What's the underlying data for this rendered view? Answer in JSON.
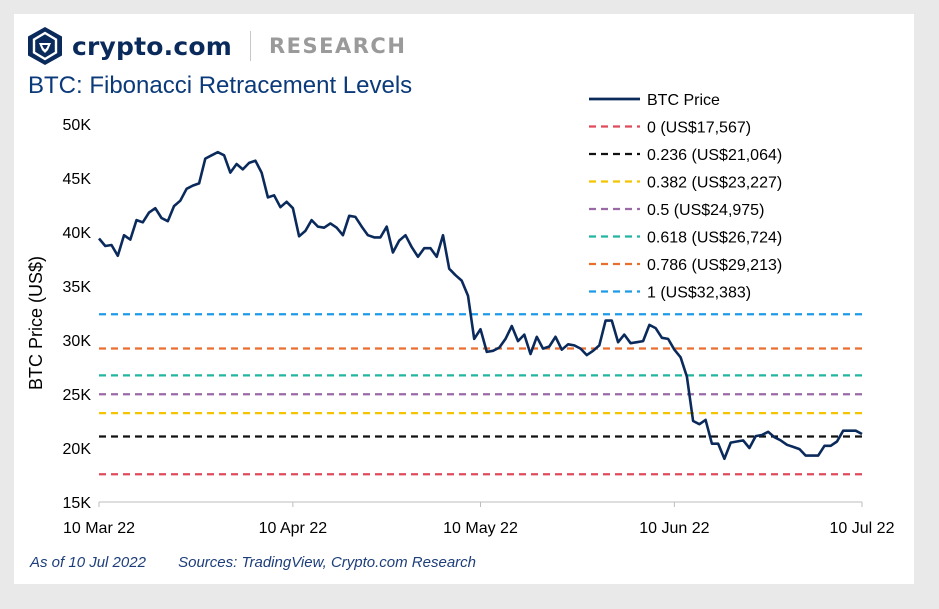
{
  "brand": {
    "name": "crypto.com",
    "section": "RESEARCH",
    "logo_icon": "crypto-com-lion-shield",
    "color": "#0b2a5c"
  },
  "footer": {
    "as_of": "As of 10 Jul 2022",
    "sources": "Sources: TradingView, Crypto.com Research"
  },
  "chart_data": {
    "type": "line",
    "title": "BTC: Fibonacci Retracement Levels",
    "xlabel": "",
    "ylabel": "BTC Price (US$)",
    "ylim": [
      15000,
      50000
    ],
    "yticks": [
      15000,
      20000,
      25000,
      30000,
      35000,
      40000,
      45000,
      50000
    ],
    "ytick_labels": [
      "15K",
      "20K",
      "25K",
      "30K",
      "35K",
      "40K",
      "45K",
      "50K"
    ],
    "xlim": [
      "2022-03-10",
      "2022-07-10"
    ],
    "xticks": [
      "2022-03-10",
      "2022-04-10",
      "2022-05-10",
      "2022-06-10",
      "2022-07-10"
    ],
    "xtick_labels": [
      "10 Mar 22",
      "10 Apr 22",
      "10 May 22",
      "10 Jun 22",
      "10 Jul 22"
    ],
    "grid": false,
    "legend": "top-right",
    "series": [
      {
        "name": "BTC Price",
        "color": "#0b2a5c",
        "x": [
          "2022-03-10",
          "2022-03-11",
          "2022-03-12",
          "2022-03-13",
          "2022-03-14",
          "2022-03-15",
          "2022-03-16",
          "2022-03-17",
          "2022-03-18",
          "2022-03-19",
          "2022-03-20",
          "2022-03-21",
          "2022-03-22",
          "2022-03-23",
          "2022-03-24",
          "2022-03-25",
          "2022-03-26",
          "2022-03-27",
          "2022-03-28",
          "2022-03-29",
          "2022-03-30",
          "2022-03-31",
          "2022-04-01",
          "2022-04-02",
          "2022-04-03",
          "2022-04-04",
          "2022-04-05",
          "2022-04-06",
          "2022-04-07",
          "2022-04-08",
          "2022-04-09",
          "2022-04-10",
          "2022-04-11",
          "2022-04-12",
          "2022-04-13",
          "2022-04-14",
          "2022-04-15",
          "2022-04-16",
          "2022-04-17",
          "2022-04-18",
          "2022-04-19",
          "2022-04-20",
          "2022-04-21",
          "2022-04-22",
          "2022-04-23",
          "2022-04-24",
          "2022-04-25",
          "2022-04-26",
          "2022-04-27",
          "2022-04-28",
          "2022-04-29",
          "2022-04-30",
          "2022-05-01",
          "2022-05-02",
          "2022-05-03",
          "2022-05-04",
          "2022-05-05",
          "2022-05-06",
          "2022-05-07",
          "2022-05-08",
          "2022-05-09",
          "2022-05-10",
          "2022-05-11",
          "2022-05-12",
          "2022-05-13",
          "2022-05-14",
          "2022-05-15",
          "2022-05-16",
          "2022-05-17",
          "2022-05-18",
          "2022-05-19",
          "2022-05-20",
          "2022-05-21",
          "2022-05-22",
          "2022-05-23",
          "2022-05-24",
          "2022-05-25",
          "2022-05-26",
          "2022-05-27",
          "2022-05-28",
          "2022-05-29",
          "2022-05-30",
          "2022-05-31",
          "2022-06-01",
          "2022-06-02",
          "2022-06-03",
          "2022-06-04",
          "2022-06-05",
          "2022-06-06",
          "2022-06-07",
          "2022-06-08",
          "2022-06-09",
          "2022-06-10",
          "2022-06-11",
          "2022-06-12",
          "2022-06-13",
          "2022-06-14",
          "2022-06-15",
          "2022-06-16",
          "2022-06-17",
          "2022-06-18",
          "2022-06-19",
          "2022-06-20",
          "2022-06-21",
          "2022-06-22",
          "2022-06-23",
          "2022-06-24",
          "2022-06-25",
          "2022-06-26",
          "2022-06-27",
          "2022-06-28",
          "2022-06-29",
          "2022-06-30",
          "2022-07-01",
          "2022-07-02",
          "2022-07-03",
          "2022-07-04",
          "2022-07-05",
          "2022-07-06",
          "2022-07-07",
          "2022-07-08",
          "2022-07-09",
          "2022-07-10"
        ],
        "y": [
          39400,
          38700,
          38800,
          37800,
          39700,
          39300,
          41100,
          40900,
          41800,
          42200,
          41300,
          41000,
          42400,
          42900,
          44000,
          44300,
          44500,
          46800,
          47100,
          47400,
          47100,
          45500,
          46300,
          45800,
          46400,
          46600,
          45500,
          43200,
          43400,
          42300,
          42800,
          42200,
          39600,
          40100,
          41100,
          40500,
          40400,
          40800,
          40400,
          39700,
          41500,
          41400,
          40500,
          39700,
          39500,
          39500,
          40500,
          38100,
          39200,
          39700,
          38600,
          37700,
          38500,
          38500,
          37700,
          39700,
          36600,
          36000,
          35500,
          34100,
          30100,
          31000,
          28900,
          29000,
          29300,
          30100,
          31300,
          29900,
          30500,
          28700,
          30300,
          29200,
          29400,
          30300,
          29100,
          29600,
          29500,
          29200,
          28600,
          29000,
          29500,
          31800,
          31800,
          29800,
          30500,
          29700,
          29800,
          29900,
          31400,
          31100,
          30200,
          30100,
          29100,
          28400,
          26600,
          22500,
          22200,
          22600,
          20400,
          20400,
          19000,
          20500,
          20600,
          20700,
          20000,
          21100,
          21200,
          21500,
          21000,
          20700,
          20300,
          20100,
          19900,
          19300,
          19300,
          19300,
          20200,
          20200,
          20600,
          21600,
          21600,
          21600,
          21300
        ]
      }
    ],
    "levels": [
      {
        "label": "0 (US$17,567)",
        "value": 17567,
        "color": "#e04b5b"
      },
      {
        "label": "0.236 (US$21,064)",
        "value": 21064,
        "color": "#111111"
      },
      {
        "label": "0.382 (US$23,227)",
        "value": 23227,
        "color": "#f5c400"
      },
      {
        "label": "0.5 (US$24,975)",
        "value": 24975,
        "color": "#9b6aa6"
      },
      {
        "label": "0.618 (US$26,724)",
        "value": 26724,
        "color": "#22b5a0"
      },
      {
        "label": "0.786 (US$29,213)",
        "value": 29213,
        "color": "#ea6f2f"
      },
      {
        "label": "1 (US$32,383)",
        "value": 32383,
        "color": "#1e9be8"
      }
    ]
  }
}
